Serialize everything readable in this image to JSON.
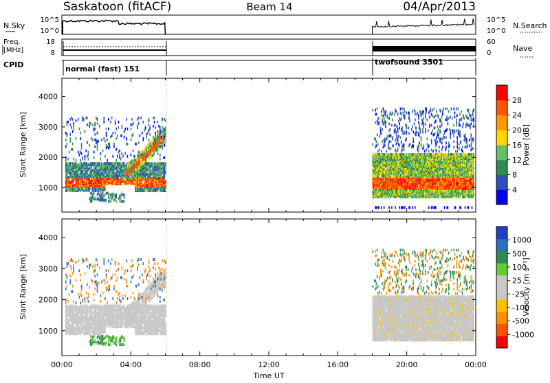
{
  "header": {
    "station": "Saskatoon (fitACF)",
    "beam": "Beam 14",
    "date": "04/Apr/2013"
  },
  "panels": {
    "nsky": {
      "left_label": "N.Sky",
      "right_label": "N.Search",
      "left_ticks": [
        "10^5",
        "10^0"
      ],
      "right_ticks": [
        "10^5",
        "10^0"
      ]
    },
    "freq": {
      "left_label_1": "Freq.",
      "left_label_2": "[MHz]",
      "right_label": "Nave",
      "left_ticks": [
        "18",
        "8"
      ],
      "right_ticks": [
        "60",
        "0"
      ]
    },
    "cpid": {
      "label": "CPID",
      "segments": [
        "normal (fast) 151",
        "twofsound 3501"
      ]
    }
  },
  "colors": {
    "power_scale": [
      "#0000ff",
      "#2f4fbf",
      "#2e8b57",
      "#66c166",
      "#ffd700",
      "#ff9900",
      "#ff5500",
      "#ff0000"
    ],
    "velocity_scale": [
      "#ff0000",
      "#ff5000",
      "#ff9000",
      "#ffc000",
      "#c8c8c8",
      "#c8c8c8",
      "#66cc33",
      "#2e8b57",
      "#2e6fbf",
      "#1e3fbf"
    ]
  },
  "chart_data": [
    {
      "type": "heatmap",
      "name": "Power",
      "ylabel": "Slant Range [km]",
      "xlabel": "Time UT",
      "x_ticks": [
        "00:00",
        "04:00",
        "08:00",
        "12:00",
        "16:00",
        "20:00",
        "00:00"
      ],
      "x_range_hours": [
        0,
        24
      ],
      "ylim": [
        200,
        4600
      ],
      "y_ticks": [
        1000,
        2000,
        3000,
        4000
      ],
      "colorbar_label": "Power [dB]",
      "colorbar_ticks": [
        "28",
        "24",
        "20",
        "16",
        "12",
        "8",
        "4"
      ],
      "data_blocks_hours": [
        [
          0.2,
          6.0
        ],
        [
          18.0,
          24.0
        ]
      ]
    },
    {
      "type": "heatmap",
      "name": "Velocity",
      "ylabel": "Slant Range [km]",
      "xlabel": "Time UT",
      "x_ticks": [
        "00:00",
        "04:00",
        "08:00",
        "12:00",
        "16:00",
        "20:00",
        "00:00"
      ],
      "x_range_hours": [
        0,
        24
      ],
      "ylim": [
        200,
        4600
      ],
      "y_ticks": [
        1000,
        2000,
        3000,
        4000
      ],
      "colorbar_label": "Velocity [m s⁻¹]",
      "colorbar_ticks": [
        "1000",
        "500",
        "100",
        "25",
        "-25",
        "-100",
        "-500",
        "-1000"
      ],
      "data_blocks_hours": [
        [
          0.2,
          6.0
        ],
        [
          18.0,
          24.0
        ]
      ]
    }
  ],
  "time_axis_label": "Time UT"
}
